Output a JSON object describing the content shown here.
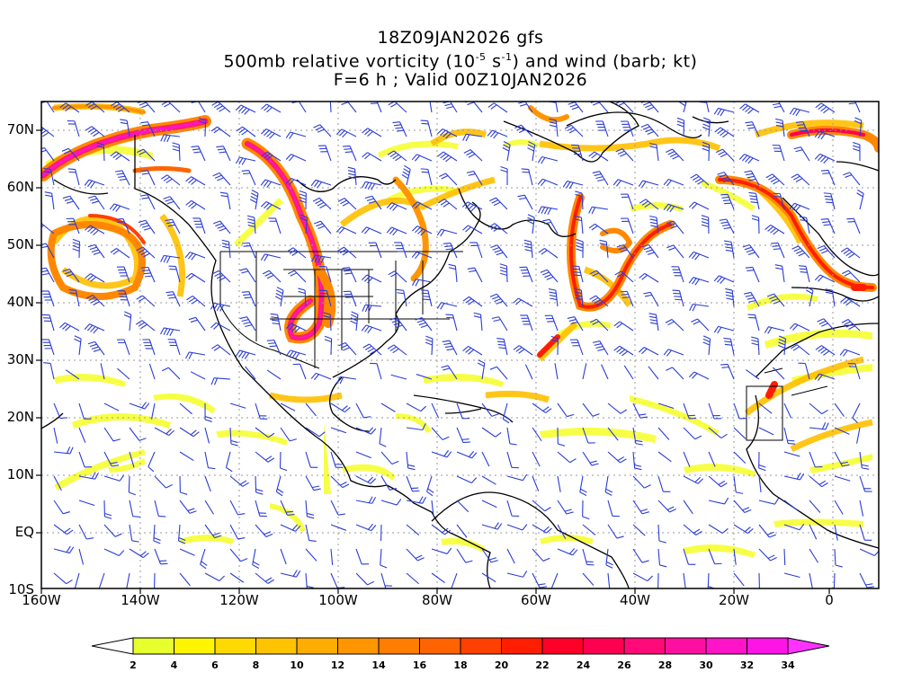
{
  "title": {
    "line1": "18Z09JAN2026 gfs",
    "line2_prefix": "500mb relative vorticity (10",
    "line2_exp1": "-5",
    "line2_mid": " s",
    "line2_exp2": "-1",
    "line2_suffix": ") and wind (barb; kt)",
    "line3": "F=6 h ; Valid 00Z10JAN2026"
  },
  "lat_labels": [
    "70N",
    "60N",
    "50N",
    "40N",
    "30N",
    "20N",
    "10N",
    "EQ",
    "10S"
  ],
  "lon_labels": [
    "160W",
    "140W",
    "120W",
    "100W",
    "80W",
    "60W",
    "40W",
    "20W",
    "0"
  ],
  "colorbar": {
    "labels": [
      "2",
      "4",
      "6",
      "8",
      "10",
      "12",
      "14",
      "16",
      "18",
      "20",
      "22",
      "24",
      "26",
      "28",
      "30",
      "32",
      "34"
    ],
    "colors": [
      "#ffffff",
      "#e8ff2e",
      "#fff500",
      "#ffd900",
      "#ffc300",
      "#ffad00",
      "#ff9600",
      "#ff7d00",
      "#ff6400",
      "#ff4000",
      "#ff1e00",
      "#ff0028",
      "#ff0050",
      "#ff0a78",
      "#ff0fa0",
      "#ff14c8",
      "#ff14e6",
      "#ff32ff"
    ]
  },
  "colors": {
    "barb": "#2a3cd6",
    "coast": "#000000",
    "grid": "#999999"
  }
}
